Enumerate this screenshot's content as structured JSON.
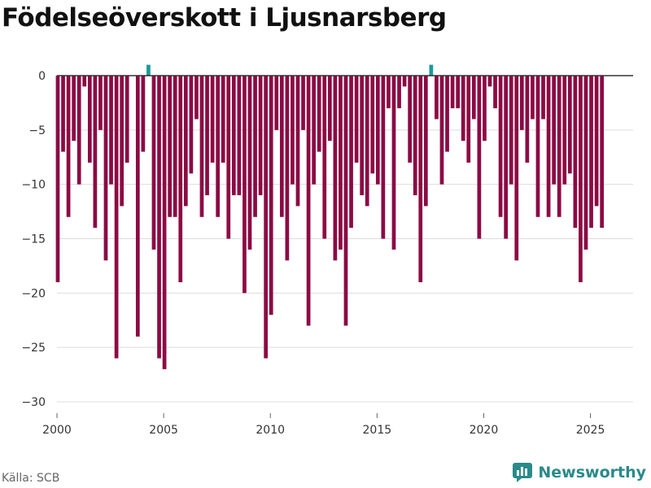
{
  "header": {
    "title": "Födelseöverskott i Ljusnarsberg"
  },
  "footer": {
    "source": "Källa: SCB",
    "brand": "Newsworthy"
  },
  "colors": {
    "bar": "#8c0a44",
    "marker": "#1a9a9a",
    "grid": "#dddddd",
    "zero_line": "#333333"
  },
  "chart_data": {
    "type": "bar",
    "title": "Födelseöverskott i Ljusnarsberg",
    "xlabel": "",
    "ylabel": "",
    "ylim": [
      -30,
      2
    ],
    "y_ticks": [
      0,
      -5,
      -10,
      -15,
      -20,
      -25,
      -30
    ],
    "y_tick_labels": [
      "0",
      "−5",
      "−10",
      "−15",
      "−20",
      "−25",
      "−30"
    ],
    "x_ticks": [
      2000,
      2005,
      2010,
      2015,
      2020,
      2025
    ],
    "x_tick_labels": [
      "2000",
      "2005",
      "2010",
      "2015",
      "2020",
      "2025"
    ],
    "start_year": 2000,
    "periods_per_year": 4,
    "series": [
      {
        "name": "Födelseöverskott",
        "values": [
          -19,
          -7,
          -13,
          -6,
          -10,
          -1,
          -8,
          -14,
          -5,
          -17,
          -10,
          -26,
          -12,
          -8,
          0,
          -24,
          -7,
          1,
          -16,
          -26,
          -27,
          -13,
          -13,
          -19,
          -12,
          -9,
          -4,
          -13,
          -11,
          -8,
          -13,
          -8,
          -15,
          -11,
          -11,
          -20,
          -16,
          -13,
          -11,
          -26,
          -22,
          -5,
          -13,
          -17,
          -10,
          -12,
          -5,
          -23,
          -10,
          -7,
          -15,
          -6,
          -17,
          -16,
          -23,
          -14,
          -8,
          -11,
          -12,
          -9,
          -10,
          -15,
          -3,
          -16,
          -3,
          -1,
          -8,
          -11,
          -19,
          -12,
          1,
          -4,
          -10,
          -7,
          -3,
          -3,
          -6,
          -8,
          -4,
          -15,
          -6,
          -1,
          -3,
          -13,
          -15,
          -10,
          -17,
          -5,
          -8,
          -4,
          -13,
          -4,
          -13,
          -10,
          -13,
          -10,
          -9,
          -14,
          -19,
          -16,
          -14,
          -12,
          -14
        ]
      }
    ]
  }
}
